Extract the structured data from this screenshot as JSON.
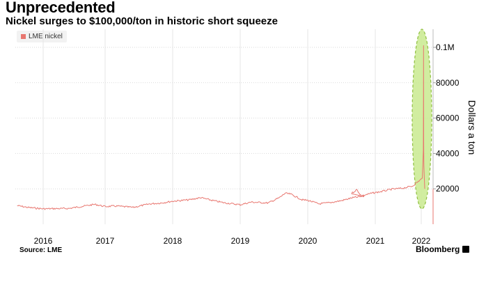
{
  "header": {
    "title": "Unprecedented",
    "subtitle": "Nickel surges to $100,000/ton in historic short squeeze"
  },
  "footer": {
    "source": "Source: LME",
    "brand": "Bloomberg"
  },
  "colors": {
    "series": "#e8766f",
    "highlight_fill": "#c9ea8f",
    "highlight_stroke": "#8fbf3f",
    "grid": "#d9d9d9"
  },
  "chart_data": {
    "type": "line",
    "title": "Unprecedented",
    "subtitle": "Nickel surges to $100,000/ton in historic short squeeze",
    "xlabel": "",
    "ylabel": "Dollars a ton",
    "ylim": [
      0,
      110000
    ],
    "yticks": [
      20000,
      40000,
      60000,
      80000,
      100000
    ],
    "ytick_labels": [
      "20000",
      "40000",
      "60000",
      "80000",
      "0.1M"
    ],
    "xticks": [
      2016,
      2017,
      2018,
      2019,
      2020,
      2021,
      2022
    ],
    "xtick_labels": [
      "2016",
      "2017",
      "2018",
      "2019",
      "2020",
      "2021",
      "2022"
    ],
    "grid": true,
    "axis_side": "right",
    "legend_position": "top-left",
    "series": [
      {
        "name": "LME nickel",
        "x": [
          "2015-08-01",
          "2015-10-01",
          "2016-01-01",
          "2016-03-01",
          "2016-06-01",
          "2016-09-01",
          "2016-11-01",
          "2017-01-01",
          "2017-03-01",
          "2017-06-01",
          "2017-09-01",
          "2017-11-01",
          "2018-01-01",
          "2018-04-01",
          "2018-06-01",
          "2018-08-01",
          "2018-10-01",
          "2019-01-01",
          "2019-03-01",
          "2019-06-01",
          "2019-08-01",
          "2019-09-01",
          "2019-10-01",
          "2019-12-01",
          "2020-01-01",
          "2020-03-01",
          "2020-05-01",
          "2020-07-01",
          "2020-09-01",
          "2020-11-01",
          "2021-01-01",
          "2021-02-01",
          "2021-03-01",
          "2021-05-01",
          "2021-07-01",
          "2021-09-01",
          "2021-11-01",
          "2022-01-01",
          "2022-02-01",
          "2022-03-01",
          "2022-03-07",
          "2022-03-08",
          "2022-03-09",
          "2022-03-10",
          "2022-03-15"
        ],
        "y": [
          10500,
          9500,
          8700,
          8800,
          8900,
          10300,
          11200,
          10000,
          10300,
          9500,
          11500,
          12000,
          13000,
          13800,
          15000,
          13500,
          12200,
          11000,
          12500,
          12000,
          15000,
          17500,
          17000,
          13800,
          13500,
          11500,
          12200,
          13300,
          15000,
          15800,
          17500,
          19500,
          16000,
          17500,
          18500,
          19800,
          20300,
          21500,
          23800,
          26000,
          42000,
          101000,
          48000,
          33000,
          20000
        ]
      }
    ],
    "annotations": [
      {
        "type": "ellipse-highlight",
        "label": "",
        "center_date": "2022-03-08"
      }
    ]
  }
}
